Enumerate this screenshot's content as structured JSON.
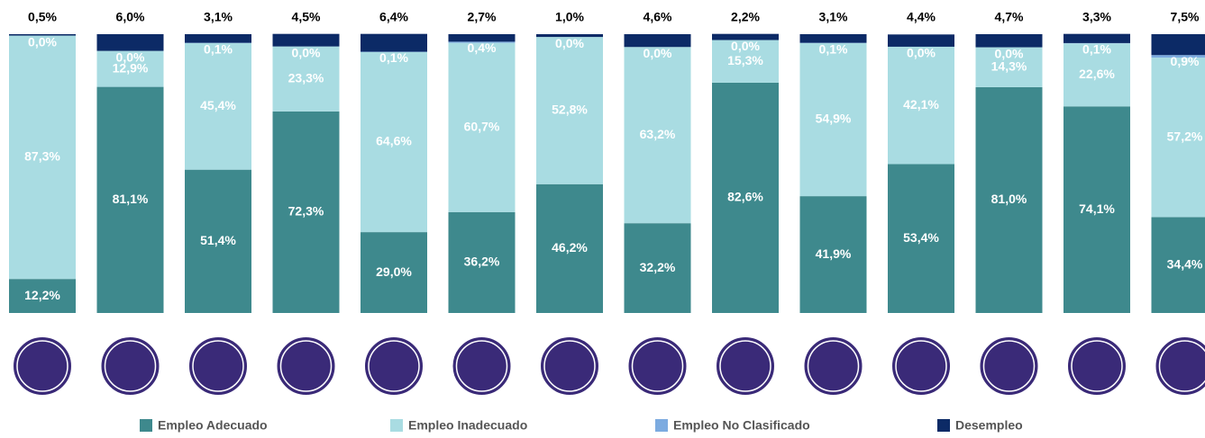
{
  "chart_data": {
    "type": "stacked-bar",
    "categories": [
      null,
      null,
      null,
      null,
      null,
      null,
      null,
      null,
      null,
      null,
      null,
      null,
      null,
      null
    ],
    "ylim": [
      0,
      100
    ],
    "series": [
      {
        "name": "Empleo Adecuado",
        "color": "#3e898d",
        "values": [
          12.2,
          81.1,
          51.4,
          72.3,
          29.0,
          36.2,
          46.2,
          32.2,
          82.6,
          41.9,
          53.4,
          81.0,
          74.1,
          34.4
        ],
        "value_labels": [
          "12,2%",
          "81,1%",
          "51,4%",
          "72,3%",
          "29,0%",
          "36,2%",
          "46,2%",
          "32,2%",
          "82,6%",
          "41,9%",
          "53,4%",
          "81,0%",
          "74,1%",
          "34,4%"
        ]
      },
      {
        "name": "Empleo Inadecuado",
        "color": "#a9dce2",
        "values": [
          87.3,
          12.9,
          45.4,
          23.3,
          64.6,
          60.7,
          52.8,
          63.2,
          15.3,
          54.9,
          42.1,
          14.3,
          22.6,
          57.2
        ],
        "value_labels": [
          "87,3%",
          "12,9%",
          "45,4%",
          "23,3%",
          "64,6%",
          "60,7%",
          "52,8%",
          "63,2%",
          "15,3%",
          "54,9%",
          "42,1%",
          "14,3%",
          "22,6%",
          "57,2%"
        ]
      },
      {
        "name": "Empleo No Clasificado",
        "color": "#7cabe0",
        "values": [
          0.0,
          0.0,
          0.1,
          0.0,
          0.1,
          0.4,
          0.0,
          0.0,
          0.0,
          0.1,
          0.0,
          0.0,
          0.1,
          0.9
        ],
        "value_labels": [
          "0,0%",
          "0,0%",
          "0,1%",
          "0,0%",
          "0,1%",
          "0,4%",
          "0,0%",
          "0,0%",
          "0,0%",
          "0,1%",
          "0,0%",
          "0,0%",
          "0,1%",
          "0,9%"
        ]
      },
      {
        "name": "Desempleo",
        "color": "#0c2a66",
        "values": [
          0.5,
          6.0,
          3.1,
          4.5,
          6.4,
          2.7,
          1.0,
          4.6,
          2.2,
          3.1,
          4.4,
          4.7,
          3.3,
          7.5
        ],
        "value_labels": [
          "0,5%",
          "6,0%",
          "3,1%",
          "4,5%",
          "6,4%",
          "2,7%",
          "1,0%",
          "4,6%",
          "2,2%",
          "3,1%",
          "4,4%",
          "4,7%",
          "3,3%",
          "7,5%"
        ]
      }
    ],
    "legend": "bottom"
  }
}
